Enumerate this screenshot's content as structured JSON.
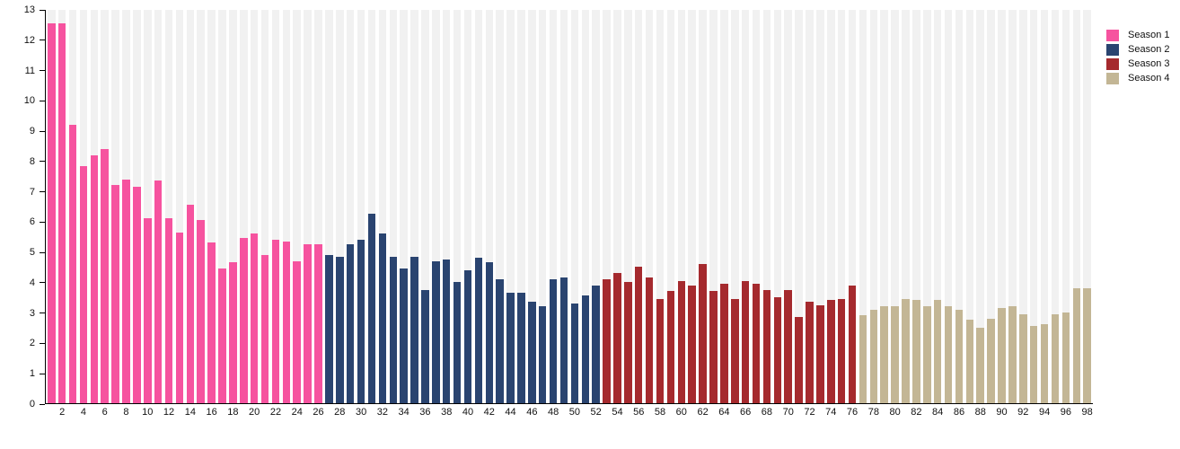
{
  "chart_data": {
    "type": "bar",
    "title": "",
    "xlabel": "",
    "ylabel": "",
    "ylim": [
      0,
      13
    ],
    "y_ticks": [
      0,
      1,
      2,
      3,
      4,
      5,
      6,
      7,
      8,
      9,
      10,
      11,
      12,
      13
    ],
    "x_ticks": [
      2,
      4,
      6,
      8,
      10,
      12,
      14,
      16,
      18,
      20,
      22,
      24,
      26,
      28,
      30,
      32,
      34,
      36,
      38,
      40,
      42,
      44,
      46,
      48,
      50,
      52,
      54,
      56,
      58,
      60,
      62,
      64,
      66,
      68,
      70,
      72,
      74,
      76,
      78,
      80,
      82,
      84,
      86,
      88,
      90,
      92,
      94,
      96,
      98
    ],
    "grid": false,
    "background_stripe_color": "#f1f1f1",
    "axis_color": "#000000",
    "legend_position": "top-right",
    "series": [
      {
        "name": "Season 1",
        "color": "#f6539f",
        "start_x": 1,
        "values": [
          12.55,
          12.55,
          9.2,
          7.85,
          8.2,
          8.4,
          7.2,
          7.4,
          7.15,
          6.1,
          7.35,
          6.1,
          5.65,
          6.55,
          6.05,
          5.3,
          4.45,
          4.65,
          5.45,
          5.6,
          4.9,
          5.4,
          5.35,
          4.7,
          5.25,
          5.25
        ]
      },
      {
        "name": "Season 2",
        "color": "#2a4470",
        "start_x": 27,
        "values": [
          4.9,
          4.85,
          5.25,
          5.4,
          6.25,
          5.6,
          4.85,
          4.45,
          4.85,
          3.75,
          4.7,
          4.75,
          4.0,
          4.4,
          4.8,
          4.65,
          4.1,
          3.65,
          3.65,
          3.35,
          3.2,
          4.1,
          4.15,
          3.3,
          3.55,
          3.9
        ]
      },
      {
        "name": "Season 3",
        "color": "#a52a2e",
        "start_x": 53,
        "values": [
          4.1,
          4.3,
          4.0,
          4.5,
          4.15,
          3.45,
          3.7,
          4.05,
          3.9,
          4.6,
          3.7,
          3.95,
          3.45,
          4.05,
          3.95,
          3.75,
          3.5,
          3.75,
          2.85,
          3.35,
          3.25,
          3.4,
          3.45,
          3.9
        ]
      },
      {
        "name": "Season 4",
        "color": "#c3b695",
        "start_x": 77,
        "values": [
          2.9,
          3.1,
          3.2,
          3.2,
          3.45,
          3.4,
          3.2,
          3.4,
          3.2,
          3.1,
          2.75,
          2.5,
          2.8,
          3.15,
          3.2,
          2.95,
          2.55,
          2.6,
          2.95,
          3.0,
          3.8,
          3.8
        ]
      }
    ]
  },
  "legend": {
    "items": [
      {
        "label": "Season 1",
        "color": "#f6539f"
      },
      {
        "label": "Season 2",
        "color": "#2a4470"
      },
      {
        "label": "Season 3",
        "color": "#a52a2e"
      },
      {
        "label": "Season 4",
        "color": "#c3b695"
      }
    ]
  }
}
